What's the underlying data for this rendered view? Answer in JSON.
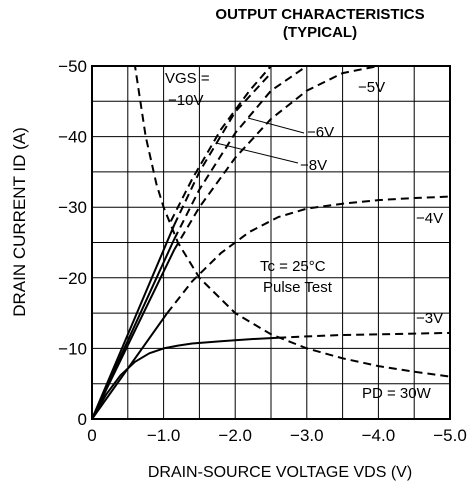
{
  "chart_data": {
    "type": "line",
    "title": "OUTPUT CHARACTERISTICS",
    "subtitle": "(TYPICAL)",
    "xlabel": "DRAIN-SOURCE VOLTAGE   VDS (V)",
    "ylabel": "DRAIN CURRENT   ID (A)",
    "xlim": [
      0,
      -5.0
    ],
    "ylim": [
      0,
      -50
    ],
    "grid": true,
    "x_tick_labels": [
      "0",
      "−1.0",
      "−2.0",
      "−3.0",
      "−4.0",
      "−5.0"
    ],
    "y_tick_labels": [
      "0",
      "−10",
      "−20",
      "−30",
      "−40",
      "−50"
    ],
    "series": [
      {
        "name": "−3V",
        "style": "solid",
        "x": [
          0,
          -0.2,
          -0.4,
          -0.6,
          -0.8,
          -1.0,
          -1.2,
          -1.4,
          -1.8,
          -2.2,
          -2.6
        ],
        "y": [
          0,
          -3.5,
          -6.2,
          -8.1,
          -9.3,
          -10.0,
          -10.4,
          -10.7,
          -11.0,
          -11.3,
          -11.5
        ]
      },
      {
        "name": "−3V",
        "style": "dashed",
        "x": [
          -2.6,
          -3.0,
          -3.5,
          -4.0,
          -4.5,
          -5.0
        ],
        "y": [
          -11.5,
          -11.7,
          -11.9,
          -12.0,
          -12.1,
          -12.2
        ]
      },
      {
        "name": "−4V",
        "style": "solid",
        "x": [
          0,
          -1.05
        ],
        "y": [
          0,
          -15.0
        ]
      },
      {
        "name": "−4V",
        "style": "dashed",
        "x": [
          -1.05,
          -1.4,
          -1.8,
          -2.2,
          -2.6,
          -3.0,
          -3.5,
          -4.0,
          -4.5,
          -5.0
        ],
        "y": [
          -15.0,
          -19.5,
          -23.5,
          -26.5,
          -28.6,
          -29.8,
          -30.5,
          -31.0,
          -31.3,
          -31.5
        ]
      },
      {
        "name": "−5V",
        "style": "solid",
        "x": [
          0,
          -1.15
        ],
        "y": [
          0,
          -24.0
        ]
      },
      {
        "name": "−5V",
        "style": "dashed",
        "x": [
          -1.15,
          -1.5,
          -2.0,
          -2.5,
          -3.0,
          -3.5,
          -4.0
        ],
        "y": [
          -24.0,
          -30.0,
          -37.0,
          -42.5,
          -46.5,
          -49.0,
          -50.0
        ]
      },
      {
        "name": "−6V",
        "style": "solid",
        "x": [
          0,
          -1.15
        ],
        "y": [
          0,
          -25.5
        ]
      },
      {
        "name": "−6V",
        "style": "dashed",
        "x": [
          -1.15,
          -1.5,
          -2.0,
          -2.5,
          -3.0
        ],
        "y": [
          -25.5,
          -32.5,
          -40.5,
          -46.5,
          -50.0
        ]
      },
      {
        "name": "−8V",
        "style": "solid",
        "x": [
          0,
          -1.15
        ],
        "y": [
          0,
          -27.5
        ]
      },
      {
        "name": "−8V",
        "style": "dashed",
        "x": [
          -1.15,
          -1.5,
          -2.0,
          -2.5
        ],
        "y": [
          -27.5,
          -35.0,
          -43.5,
          -49.0
        ]
      },
      {
        "name": "−10V",
        "style": "dashed",
        "x": [
          -1.1,
          -1.4,
          -1.8,
          -2.2,
          -2.5
        ],
        "y": [
          -28.0,
          -34.0,
          -41.0,
          -46.5,
          -50.0
        ]
      },
      {
        "name": "PD = 30W",
        "style": "dashed",
        "x": [
          -0.55,
          -0.6,
          -0.75,
          -0.9,
          -1.0,
          -1.2,
          -1.5,
          -2.0,
          -2.5,
          -3.0,
          -3.5,
          -4.0,
          -4.5,
          -5.0
        ],
        "y": [
          -50.0,
          -50.0,
          -40.0,
          -33.3,
          -30.0,
          -25.0,
          -20.0,
          -15.0,
          -12.0,
          -10.0,
          -8.6,
          -7.5,
          -6.7,
          -6.0
        ]
      }
    ],
    "annotations": {
      "vgs_label_1": "VGS =",
      "vgs_label_2": "−10V",
      "v5": "−5V",
      "v6": "−6V",
      "v8": "−8V",
      "v4": "−4V",
      "v3": "−3V",
      "tc": "Tc = 25°C",
      "pulse": "Pulse Test",
      "pd": "PD = 30W"
    }
  }
}
